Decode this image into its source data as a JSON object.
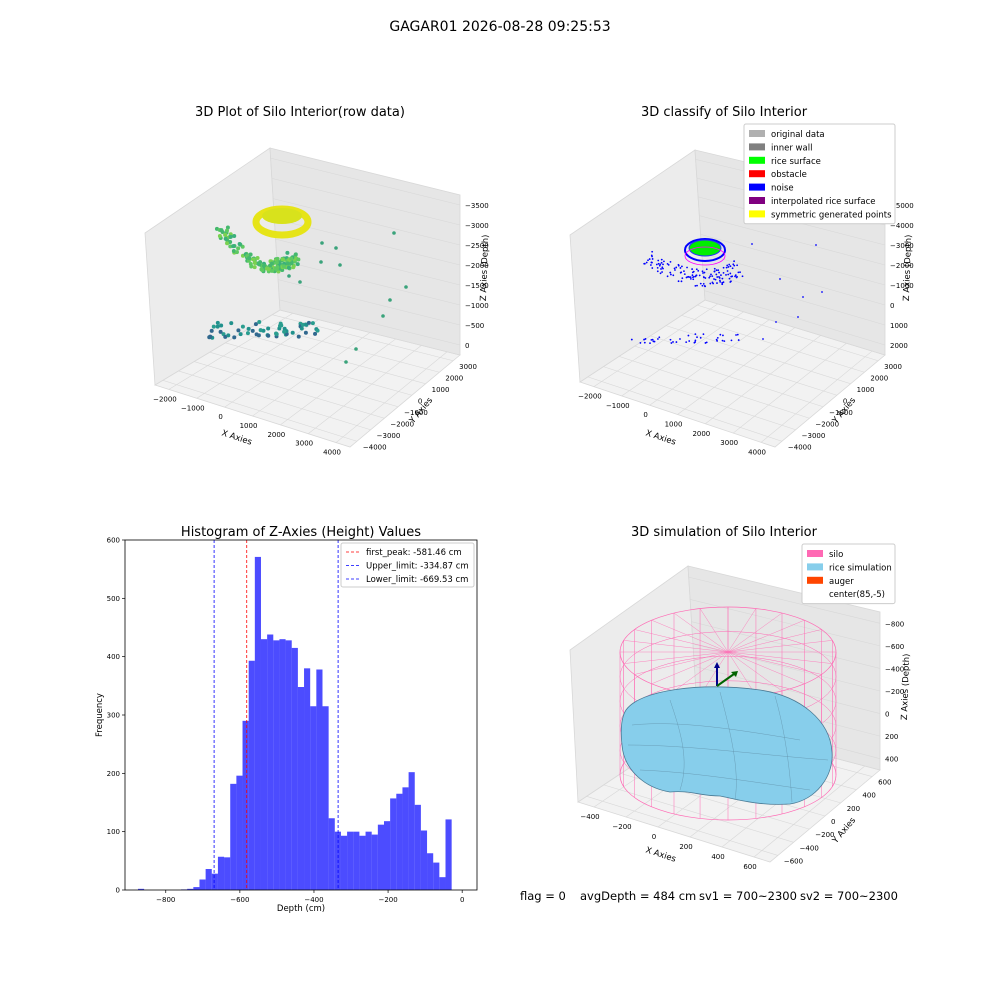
{
  "suptitle": "GAGAR01 2026-08-28 09:25:53",
  "footer": {
    "flag": "flag = 0",
    "avg": "avgDepth = 484 cm",
    "sv1": "sv1 = 700~2300",
    "sv2": "sv2 = 700~2300"
  },
  "chart_data": [
    {
      "type": "scatter",
      "subtype": "3d",
      "title": "3D Plot of Silo Interior(row data)",
      "xlabel": "X Axies",
      "ylabel": "Y Axies",
      "zlabel": "Z Axies (Depth)",
      "xticks": [
        "−2000",
        "−1000",
        "0",
        "1000",
        "2000",
        "3000",
        "4000"
      ],
      "yticks": [
        "−4000",
        "−3000",
        "−2000",
        "−1000",
        "0",
        "1000",
        "2000",
        "3000"
      ],
      "zticks": [
        "0",
        "−500",
        "−1000",
        "−1500",
        "−2000",
        "−2500",
        "−3000",
        "−3500"
      ],
      "colormap": "viridis"
    },
    {
      "type": "scatter",
      "subtype": "3d",
      "title": "3D classify of Silo Interior",
      "xlabel": "X Axies",
      "ylabel": "Y Axies",
      "zlabel": "Z Axies (Depth)",
      "xticks": [
        "−2000",
        "−1000",
        "0",
        "1000",
        "2000",
        "3000",
        "4000"
      ],
      "yticks": [
        "−4000",
        "−3000",
        "−2000",
        "−1000",
        "0",
        "1000",
        "2000",
        "3000"
      ],
      "zticks": [
        "2000",
        "1000",
        "0",
        "−1000",
        "−2000",
        "−3000",
        "−4000",
        "−5000"
      ],
      "legend_position": "top-right",
      "legend": [
        {
          "label": "original data",
          "color": "#b0b0b0"
        },
        {
          "label": "inner wall",
          "color": "#808080"
        },
        {
          "label": "rice surface",
          "color": "#00ff00"
        },
        {
          "label": "obstacle",
          "color": "#ff0000"
        },
        {
          "label": "noise",
          "color": "#0000ff"
        },
        {
          "label": "interpolated rice surface",
          "color": "#800080"
        },
        {
          "label": "symmetric generated points",
          "color": "#ffff00"
        }
      ]
    },
    {
      "type": "bar",
      "subtype": "histogram",
      "title": "Histogram of Z-Axies (Height) Values",
      "xlabel": "Depth (cm)",
      "ylabel": "Frequency",
      "xlim": [
        -910,
        40
      ],
      "ylim": [
        0,
        600
      ],
      "xticks": [
        -800,
        -600,
        -400,
        -200,
        0
      ],
      "xtick_labels": [
        "−800",
        "−600",
        "−400",
        "−200",
        "0"
      ],
      "yticks": [
        0,
        100,
        200,
        300,
        400,
        500,
        600
      ],
      "bar_color": "#0000ff",
      "bin_start": -875,
      "bin_width": 16.6,
      "values": [
        2,
        0,
        0,
        0,
        0,
        0,
        0,
        1,
        2,
        5,
        18,
        36,
        28,
        57,
        56,
        182,
        196,
        290,
        393,
        571,
        430,
        438,
        428,
        430,
        428,
        415,
        348,
        380,
        315,
        378,
        315,
        123,
        100,
        93,
        100,
        100,
        93,
        100,
        95,
        112,
        118,
        157,
        165,
        176,
        202,
        146,
        102,
        63,
        47,
        22,
        121
      ],
      "vlines": [
        {
          "x": -581.46,
          "color": "#ff0000",
          "label": "first_peak: -581.46 cm"
        },
        {
          "x": -334.87,
          "color": "#0000ff",
          "label": "Upper_limit: -334.87 cm"
        },
        {
          "x": -669.53,
          "color": "#0000ff",
          "label": "Lower_limit: -669.53 cm"
        }
      ],
      "legend_position": "top-right"
    },
    {
      "type": "surface",
      "subtype": "3d",
      "title": "3D simulation of Silo Interior",
      "xlabel": "X Axies",
      "ylabel": "Y Axies",
      "zlabel": "Z Axies (Depth)",
      "xticks": [
        "−400",
        "−200",
        "0",
        "200",
        "400",
        "600"
      ],
      "yticks": [
        "−600",
        "−400",
        "−200",
        "0",
        "200",
        "400",
        "600"
      ],
      "zticks": [
        "400",
        "200",
        "0",
        "−200",
        "−400",
        "−600",
        "−800"
      ],
      "legend_position": "top-right",
      "legend": [
        {
          "label": "silo",
          "color": "#ff69b4"
        },
        {
          "label": "rice simulation",
          "color": "#87ceeb"
        },
        {
          "label": "auger",
          "color": "#ff4500"
        },
        {
          "label": "center(85,-5)",
          "color": "#ffffff"
        }
      ]
    }
  ]
}
